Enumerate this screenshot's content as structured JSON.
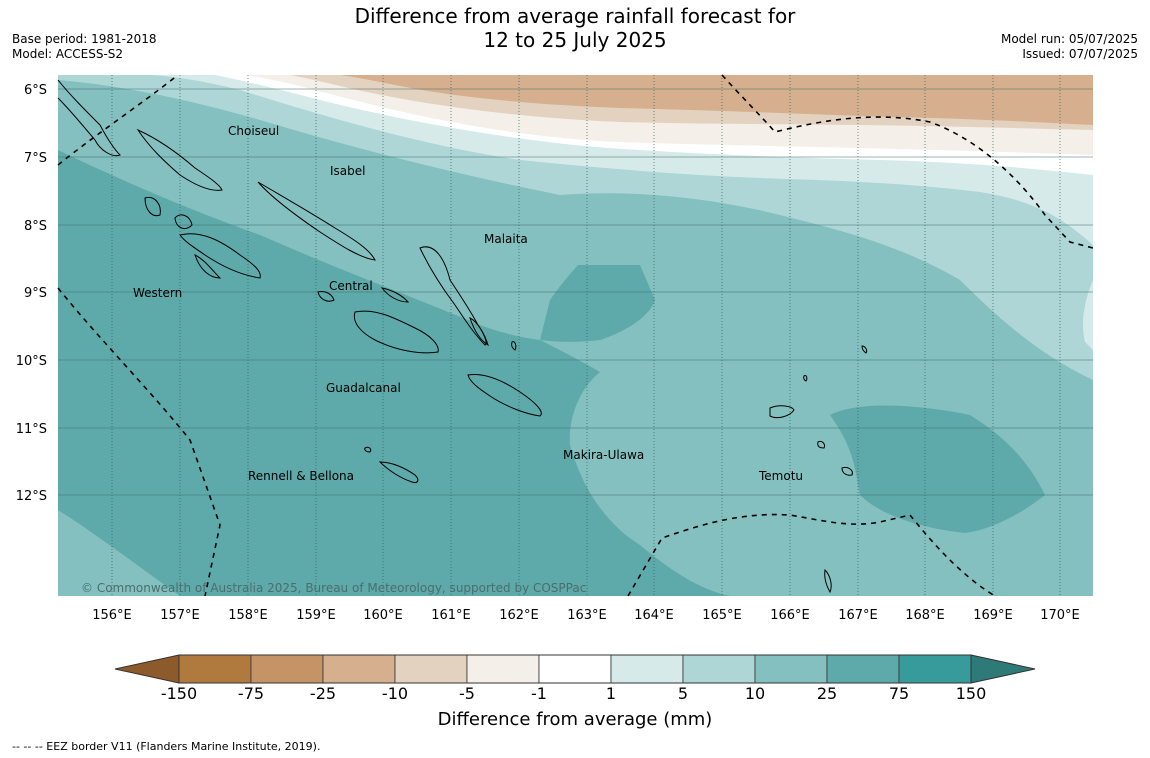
{
  "header": {
    "title_line1": "Difference from average rainfall forecast for",
    "title_line2": "12 to 25 July 2025",
    "base_period": "Base period: 1981-2018",
    "model": "Model: ACCESS-S2",
    "model_run": "Model run: 05/07/2025",
    "issued": "Issued: 07/07/2025"
  },
  "map": {
    "lat_labels": [
      "6°S",
      "7°S",
      "8°S",
      "9°S",
      "10°S",
      "11°S",
      "12°S"
    ],
    "lon_labels": [
      "156°E",
      "157°E",
      "158°E",
      "159°E",
      "160°E",
      "161°E",
      "162°E",
      "163°E",
      "164°E",
      "165°E",
      "166°E",
      "167°E",
      "168°E",
      "169°E",
      "170°E"
    ],
    "regions": [
      {
        "name": "Choiseul"
      },
      {
        "name": "Isabel"
      },
      {
        "name": "Malaita"
      },
      {
        "name": "Western"
      },
      {
        "name": "Central"
      },
      {
        "name": "Guadalcanal"
      },
      {
        "name": "Makira-Ulawa"
      },
      {
        "name": "Rennell & Bellona"
      },
      {
        "name": "Temotu"
      }
    ],
    "copyright": "© Commonwealth of Australia 2025, Bureau of Meteorology, supported by COSPPac"
  },
  "colorbar": {
    "ticks": [
      "-150",
      "-75",
      "-25",
      "-10",
      "-5",
      "-1",
      "1",
      "5",
      "10",
      "25",
      "75",
      "150"
    ],
    "colors": [
      "#b07a3f",
      "#c49466",
      "#d6b08e",
      "#e4d2c0",
      "#f4efe9",
      "#ffffff",
      "#d6eaea",
      "#aed6d6",
      "#84c0bf",
      "#5eaaaa",
      "#389b9b"
    ],
    "under_color": "#8c5a2b",
    "over_color": "#2e7a78",
    "title": "Difference from average (mm)"
  },
  "footnote": "--  --  -- EEZ border V11 (Flanders Marine Institute, 2019)."
}
